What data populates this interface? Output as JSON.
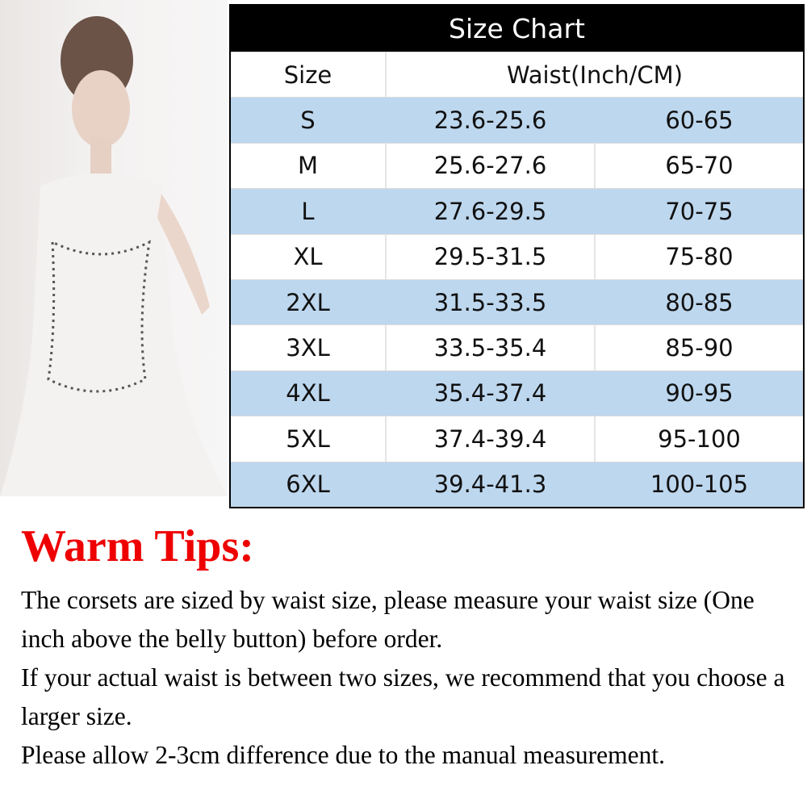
{
  "table": {
    "title": "Size Chart",
    "headers": {
      "size": "Size",
      "waist": "Waist(Inch/CM)"
    },
    "rows": [
      {
        "size": "S",
        "inch": "23.6-25.6",
        "cm": "60-65"
      },
      {
        "size": "M",
        "inch": "25.6-27.6",
        "cm": "65-70"
      },
      {
        "size": "L",
        "inch": "27.6-29.5",
        "cm": "70-75"
      },
      {
        "size": "XL",
        "inch": "29.5-31.5",
        "cm": "75-80"
      },
      {
        "size": "2XL",
        "inch": "31.5-33.5",
        "cm": "80-85"
      },
      {
        "size": "3XL",
        "inch": "33.5-35.4",
        "cm": "85-90"
      },
      {
        "size": "4XL",
        "inch": "35.4-37.4",
        "cm": "90-95"
      },
      {
        "size": "5XL",
        "inch": "37.4-39.4",
        "cm": "95-100"
      },
      {
        "size": "6XL",
        "inch": "39.4-41.3",
        "cm": "100-105"
      }
    ]
  },
  "tips": {
    "title": "Warm Tips:",
    "lines": [
      "The corsets are sized by waist size, please measure your waist size (One inch above the belly button) before order.",
      "If your actual waist is between two sizes, we recommend that you choose a larger size.",
      "Please allow 2-3cm difference due to the manual measurement."
    ]
  },
  "colors": {
    "header_bg": "#000000",
    "stripe": "#bdd7ee",
    "tips_title": "#ee0000"
  }
}
